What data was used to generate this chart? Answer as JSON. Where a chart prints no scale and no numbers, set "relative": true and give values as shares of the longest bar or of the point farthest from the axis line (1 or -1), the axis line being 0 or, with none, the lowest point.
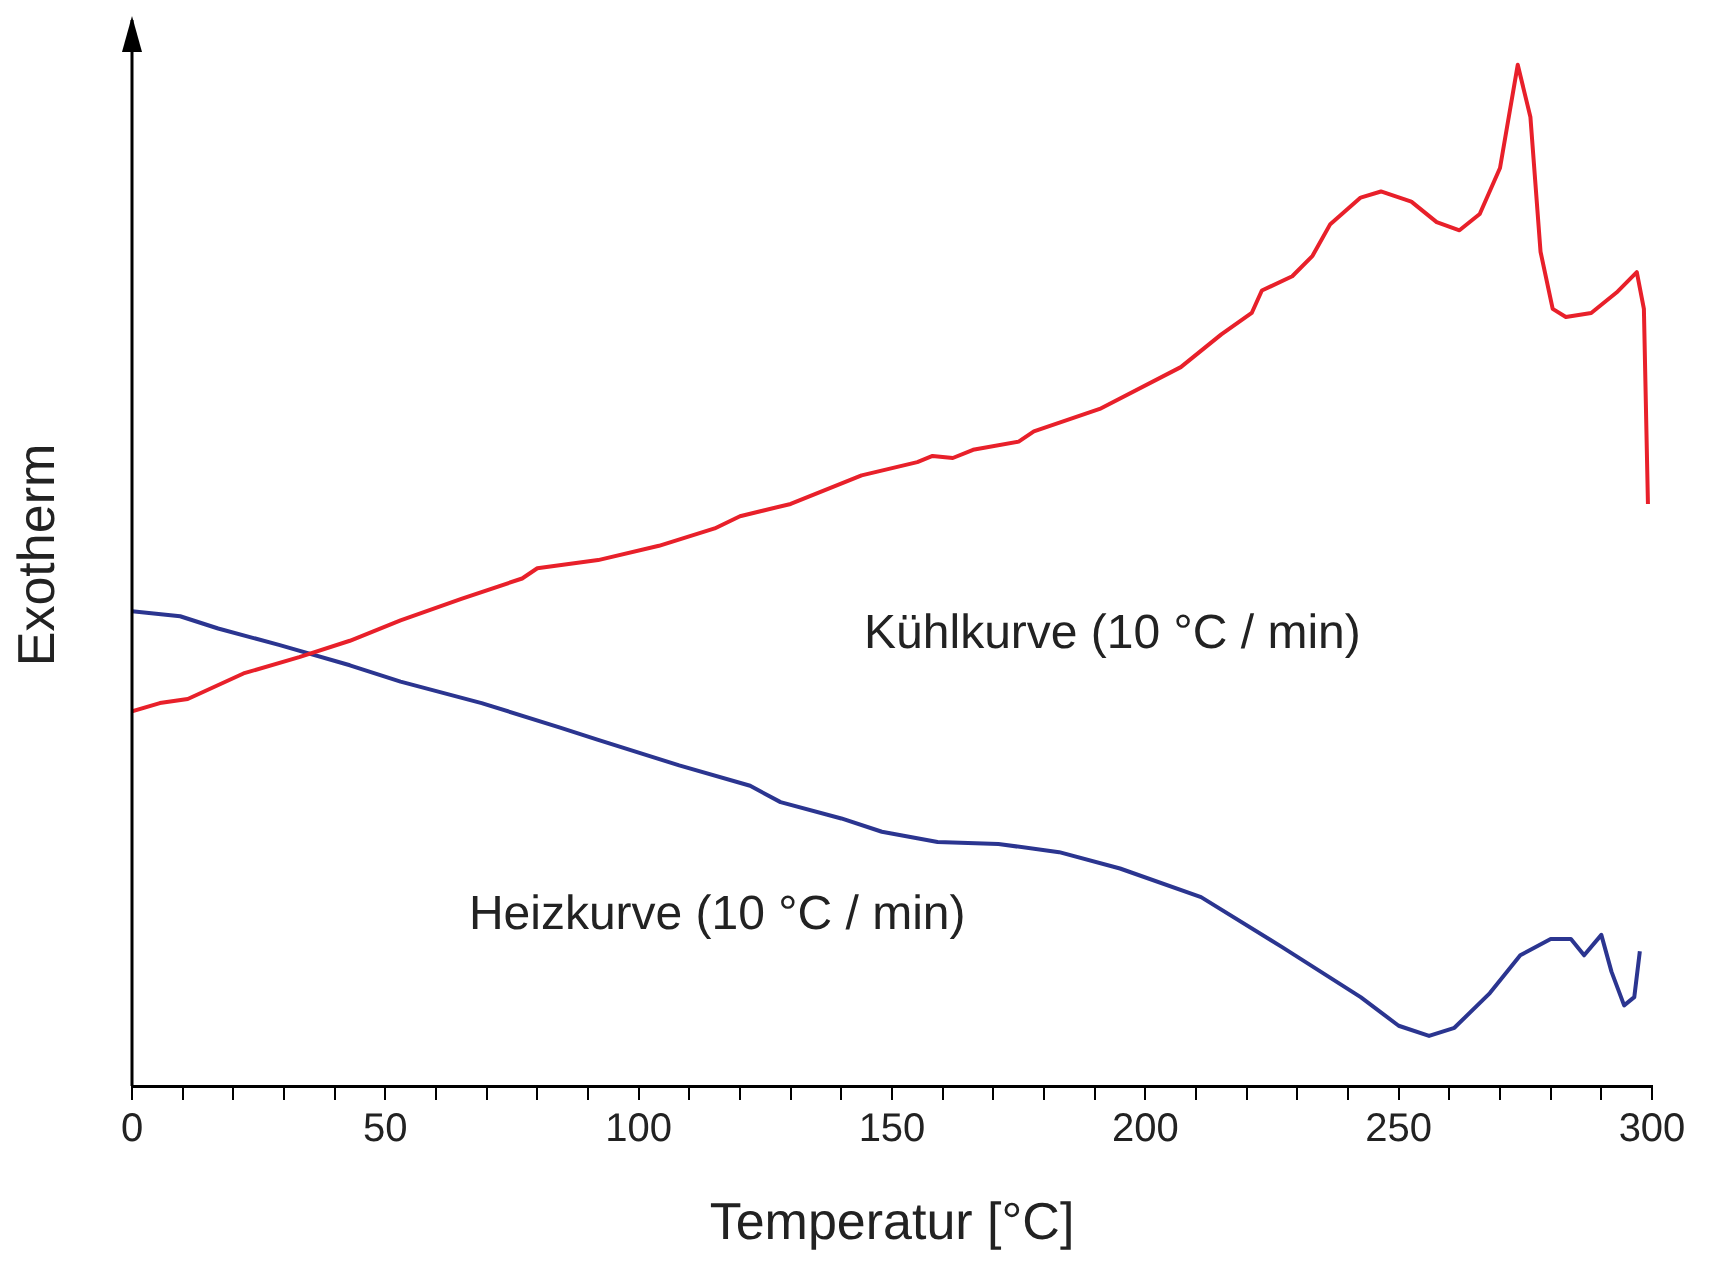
{
  "chart_data": {
    "type": "line",
    "relative": true,
    "xlabel": "Temperatur [°C]",
    "ylabel": "Exotherm",
    "xlim": [
      0,
      300
    ],
    "xticks": [
      0,
      {
        "value": 10,
        "label": null
      },
      {
        "value": 20,
        "label": null
      },
      {
        "value": 30,
        "label": null
      },
      {
        "value": 40,
        "label": null
      },
      50,
      {
        "value": 60,
        "label": null
      },
      {
        "value": 70,
        "label": null
      },
      {
        "value": 80,
        "label": null
      },
      {
        "value": 90,
        "label": null
      },
      100,
      {
        "value": 110,
        "label": null
      },
      {
        "value": 120,
        "label": null
      },
      {
        "value": 130,
        "label": null
      },
      {
        "value": 140,
        "label": null
      },
      150,
      {
        "value": 160,
        "label": null
      },
      {
        "value": 170,
        "label": null
      },
      {
        "value": 180,
        "label": null
      },
      {
        "value": 190,
        "label": null
      },
      200,
      {
        "value": 210,
        "label": null
      },
      {
        "value": 220,
        "label": null
      },
      {
        "value": 230,
        "label": null
      },
      {
        "value": 240,
        "label": null
      },
      250,
      {
        "value": 260,
        "label": null
      },
      {
        "value": 270,
        "label": null
      },
      {
        "value": 280,
        "label": null
      },
      {
        "value": 290,
        "label": null
      },
      300
    ],
    "grid": false,
    "legend": false,
    "marker": "none",
    "line_style": "solid",
    "series": [
      {
        "name": "Kühlkurve (10 °C / min)",
        "color": "#e8202a",
        "x": [
          0,
          5.5,
          11,
          22,
          33,
          43,
          53,
          65,
          77,
          80,
          92,
          104,
          115,
          120,
          130,
          144,
          155,
          158,
          162,
          166,
          175,
          178,
          191,
          207,
          215,
          221,
          223,
          229,
          233,
          236.5,
          242.5,
          246.5,
          252.5,
          257.5,
          262,
          266,
          270,
          273.5,
          276,
          278,
          280.4,
          283,
          288,
          293,
          297,
          298.4,
          299.2
        ],
        "values": [
          0.367,
          0.375,
          0.379,
          0.404,
          0.42,
          0.436,
          0.456,
          0.477,
          0.497,
          0.507,
          0.515,
          0.529,
          0.546,
          0.558,
          0.57,
          0.598,
          0.611,
          0.617,
          0.615,
          0.623,
          0.631,
          0.641,
          0.663,
          0.704,
          0.736,
          0.757,
          0.779,
          0.793,
          0.813,
          0.844,
          0.87,
          0.876,
          0.866,
          0.846,
          0.838,
          0.854,
          0.899,
          1,
          0.949,
          0.817,
          0.761,
          0.753,
          0.757,
          0.777,
          0.797,
          0.761,
          0.57
        ]
      },
      {
        "name": "Heizkurve (10 °C / min)",
        "color": "#2b3590",
        "x": [
          0,
          9.5,
          17,
          29,
          43,
          53,
          69,
          84.5,
          92,
          108,
          122,
          128,
          140,
          148,
          159,
          171,
          183,
          195,
          211,
          227,
          242.5,
          250,
          256,
          261,
          268,
          274,
          280,
          284,
          286.6,
          290,
          292,
          294.5,
          296.5,
          297.6
        ],
        "values": [
          0.465,
          0.46,
          0.448,
          0.432,
          0.412,
          0.396,
          0.375,
          0.351,
          0.339,
          0.314,
          0.294,
          0.278,
          0.262,
          0.249,
          0.239,
          0.237,
          0.229,
          0.213,
          0.185,
          0.136,
          0.087,
          0.059,
          0.049,
          0.057,
          0.091,
          0.128,
          0.144,
          0.144,
          0.128,
          0.148,
          0.112,
          0.079,
          0.087,
          0.132
        ]
      }
    ]
  }
}
